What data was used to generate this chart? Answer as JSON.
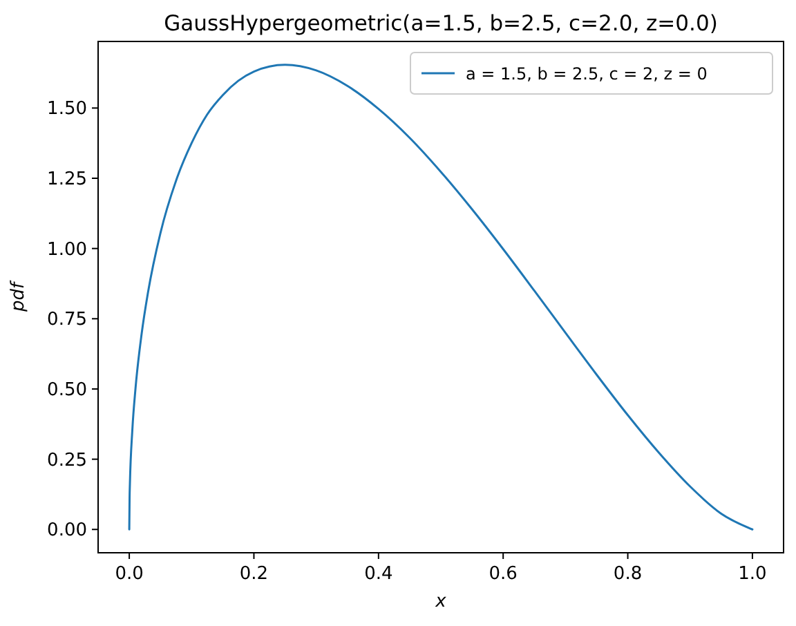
{
  "chart_data": {
    "type": "line",
    "title": "GaussHypergeometric(a=1.5, b=2.5, c=2.0, z=0.0)",
    "xlabel": "x",
    "ylabel": "pdf",
    "x": [
      0,
      0.0005,
      0.001,
      0.005,
      0.01,
      0.02,
      0.03,
      0.05,
      0.075,
      0.1,
      0.125,
      0.15,
      0.175,
      0.2,
      0.25,
      0.3,
      0.35,
      0.4,
      0.45,
      0.5,
      0.55,
      0.6,
      0.65,
      0.7,
      0.75,
      0.8,
      0.85,
      0.9,
      0.95,
      1.0
    ],
    "series": [
      {
        "name": "a = 1.5, b = 2.5, c = 2, z = 0",
        "color": "#1f77b4",
        "values": [
          0,
          0.114,
          0.161,
          0.357,
          0.502,
          0.699,
          0.843,
          1.055,
          1.241,
          1.375,
          1.477,
          1.546,
          1.597,
          1.63,
          1.654,
          1.634,
          1.579,
          1.497,
          1.394,
          1.273,
          1.14,
          0.998,
          0.85,
          0.7,
          0.551,
          0.407,
          0.273,
          0.153,
          0.056,
          0
        ]
      }
    ],
    "xlim": [
      -0.05,
      1.05
    ],
    "xticks": [
      {
        "value": 0,
        "label": "0.0"
      },
      {
        "value": 0.2,
        "label": "0.2"
      },
      {
        "value": 0.4,
        "label": "0.4"
      },
      {
        "value": 0.6,
        "label": "0.6"
      },
      {
        "value": 0.8,
        "label": "0.8"
      },
      {
        "value": 1,
        "label": "1.0"
      }
    ],
    "ylim": [
      -0.083,
      1.737
    ],
    "yticks": [
      {
        "value": 0,
        "label": "0.00"
      },
      {
        "value": 0.25,
        "label": "0.25"
      },
      {
        "value": 0.5,
        "label": "0.50"
      },
      {
        "value": 0.75,
        "label": "0.75"
      },
      {
        "value": 1,
        "label": "1.00"
      },
      {
        "value": 1.25,
        "label": "1.25"
      },
      {
        "value": 1.5,
        "label": "1.50"
      }
    ],
    "grid": false,
    "legend": "top right",
    "marker": "none",
    "line_style": "solid"
  }
}
